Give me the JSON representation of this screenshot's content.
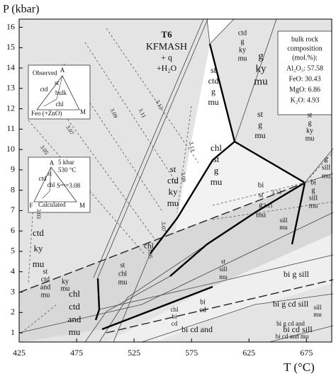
{
  "chart_data": {
    "type": "phase-diagram",
    "y_label": "P (kbar)",
    "x_label": "T (°C)",
    "xlim": [
      425,
      697
    ],
    "ylim": [
      0.55,
      16.4
    ],
    "xticks": [
      425,
      475,
      525,
      575,
      625,
      675
    ],
    "yticks": [
      1,
      2,
      3,
      4,
      5,
      6,
      7,
      8,
      9,
      10,
      11,
      12,
      13,
      14,
      15,
      16
    ],
    "annotations": [
      "T6",
      "KFMASH",
      "+ q",
      "+H₂O"
    ],
    "bulk_composition": [
      "bulk rock",
      "composition",
      "(mol.%):",
      "Al₂O₃: 57.58",
      "FeO: 30.43",
      "MgO: 6.86",
      "K₂O: 4.93"
    ],
    "inset_observed": [
      "Observed",
      "A",
      "st",
      "ctd",
      "bulk",
      "chl",
      "Feo (+ZnO)",
      "M"
    ],
    "inset_calculated": [
      "5 kbar",
      "530 °C",
      "A",
      "st",
      "ctd",
      "chl",
      "Sᵐᵘ=3.08",
      "F",
      "Calculated",
      "M"
    ],
    "isopleth_labels": [
      3.13,
      3.11,
      3.09,
      3.07,
      3.05,
      3.03,
      3.13,
      3.09,
      3.07,
      3.05,
      3.13,
      3.11
    ],
    "fields": [
      [
        "g",
        "ky",
        "mu"
      ],
      [
        "ctd",
        "g",
        "ky",
        "mu"
      ],
      [
        "st",
        "ctd",
        "g",
        "mu"
      ],
      [
        "st",
        "g",
        "mu"
      ],
      [
        "st",
        "g",
        "ky",
        "mu"
      ],
      [
        "chl",
        "st",
        "g",
        "mu"
      ],
      [
        "st",
        "ctd",
        "ky",
        "mu"
      ],
      [
        "ctd",
        "ky",
        "mu"
      ],
      [
        "bi",
        "st",
        "g",
        "mu"
      ],
      [
        "g",
        "sill",
        "mu"
      ],
      [
        "bi",
        "g",
        "sill",
        "mu"
      ],
      [
        "bi  g  sill"
      ],
      [
        "bi  g  cd  sill"
      ],
      [
        "bi  cd  sill"
      ],
      [
        "bi  cd  and"
      ],
      [
        "st",
        "ctd",
        "and",
        "mu"
      ],
      [
        "chl",
        "ctd",
        "and",
        "mu"
      ],
      [
        "ky",
        "mu"
      ],
      [
        "st",
        "chl",
        "mu"
      ],
      [
        "chl"
      ],
      [
        "sill",
        "mu"
      ],
      [
        "bi",
        "cd"
      ],
      [
        "chl",
        "bi",
        "cd"
      ],
      [
        "bi g cd and"
      ],
      [
        "bi cd and mu"
      ],
      [
        "sill",
        "mu"
      ],
      [
        "st",
        "sill",
        "mu"
      ]
    ]
  }
}
